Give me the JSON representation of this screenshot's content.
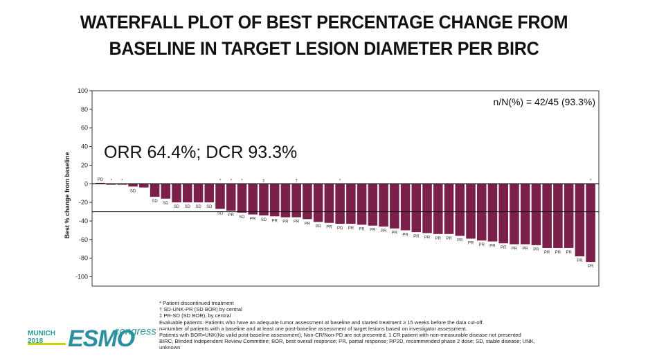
{
  "title_line1": "WATERFALL PLOT OF BEST PERCENTAGE CHANGE FROM",
  "title_line2": "BASELINE IN TARGET LESION DIAMETER PER BIRC",
  "bar_color": "#7b1f4b",
  "chart_data": {
    "type": "bar",
    "ylabel": "Best % change from baseline",
    "ylim": [
      -110,
      100
    ],
    "yticks": [
      100,
      80,
      60,
      40,
      20,
      0,
      -20,
      -40,
      -60,
      -80,
      -100
    ],
    "threshold_line": -30,
    "annotation_top_right": "n/N(%) = 42/45 (93.3%)",
    "annotation_big": "ORR 64.4%; DCR 93.3%",
    "values": [
      1,
      -1,
      -1,
      -3,
      -4,
      -14,
      -16,
      -20,
      -20,
      -20,
      -20,
      -27,
      -29,
      -31,
      -33,
      -34,
      -35,
      -36,
      -36,
      -38,
      -41,
      -42,
      -43,
      -43,
      -44,
      -45,
      -46,
      -48,
      -50,
      -52,
      -53,
      -54,
      -54,
      -56,
      -59,
      -61,
      -62,
      -64,
      -65,
      -65,
      -66,
      -69,
      -69,
      -69,
      -78,
      -84
    ],
    "labels": [
      "PD",
      "",
      "",
      "SD",
      "",
      "SD",
      "SD",
      "SD",
      "SD",
      "SD",
      "SD",
      "SD",
      "PR",
      "SD",
      "PR",
      "SD",
      "PR",
      "PR",
      "PR",
      "PR",
      "PR",
      "PR",
      "PD",
      "PR",
      "PR",
      "PR",
      "PR",
      "PR",
      "PR",
      "PR",
      "PR",
      "PR",
      "PR",
      "PR",
      "PR",
      "PR",
      "PR",
      "PR",
      "PR",
      "PR",
      "PR",
      "PR",
      "PR",
      "PR",
      "PR",
      "PR"
    ],
    "markers": [
      "",
      "*",
      "*",
      "",
      "",
      "",
      "",
      "",
      "",
      "",
      "",
      "*",
      "*",
      "*",
      "",
      "‡",
      "",
      "",
      "†",
      "",
      "",
      "",
      "*",
      "",
      "",
      "",
      "",
      "",
      "",
      "",
      "",
      "",
      "",
      "",
      "",
      "",
      "",
      "",
      "",
      "",
      "",
      "",
      "",
      "",
      "",
      "*"
    ]
  },
  "footnotes": [
    "* Patient discontinued treatment",
    "† SD-UNK-PR (SD BOR) by central",
    "‡ PR-SD (SD BOR), by central",
    "Evaluable patients: Patients who have an adequate tumor assessment at baseline and started treatment ≥ 15 weeks before the data cut-off.",
    "n=number of patients with a baseline and at least one post-baseline assessment of target lesions based on investigator assessment.",
    "Patients with BOR=UNK(No valid post-baseline assessment), Non-CR/Non-PD are not presented, 1 CR patient with non-measurable disease not presented",
    "BIRC, Blinded Independent Review Committee; BOR, best overall response; PR, partial response; RP2D, recommended phase 2 dose; SD, stable disease; UNK,",
    "unknown"
  ],
  "logo": {
    "city": "MUNICH",
    "year": "2018",
    "brand": "ESMO",
    "suffix": "congress"
  }
}
